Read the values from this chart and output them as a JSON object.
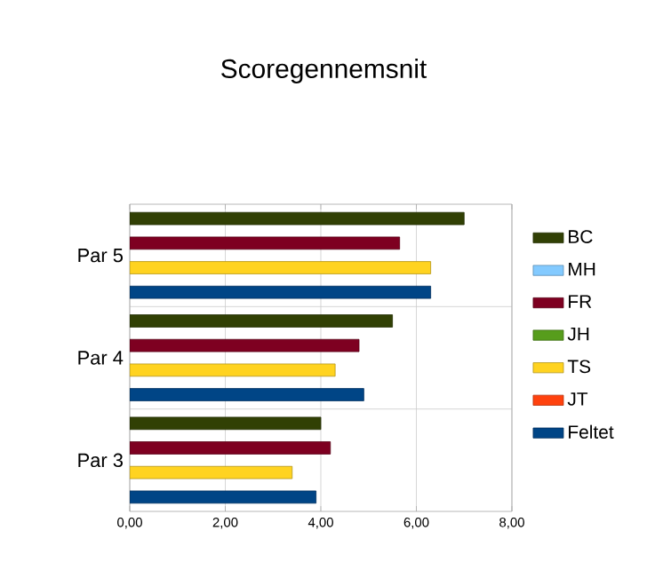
{
  "chart_data": {
    "type": "bar",
    "orientation": "horizontal",
    "title": "Scoregennemsnit",
    "categories": [
      "Par 5",
      "Par 4",
      "Par 3"
    ],
    "series": [
      {
        "name": "BC",
        "color": "#314004",
        "values": [
          7.0,
          5.5,
          4.0
        ]
      },
      {
        "name": "MH",
        "color": "#83caff",
        "values": [
          null,
          null,
          null
        ]
      },
      {
        "name": "FR",
        "color": "#7e0021",
        "values": [
          5.65,
          4.8,
          4.2
        ]
      },
      {
        "name": "JH",
        "color": "#579d1c",
        "values": [
          null,
          null,
          null
        ]
      },
      {
        "name": "TS",
        "color": "#ffd320",
        "values": [
          6.3,
          4.3,
          3.4
        ]
      },
      {
        "name": "JT",
        "color": "#ff420e",
        "values": [
          null,
          null,
          null
        ]
      },
      {
        "name": "Feltet",
        "color": "#004586",
        "values": [
          6.3,
          4.9,
          3.9
        ]
      }
    ],
    "xlim": [
      0,
      8
    ],
    "xticks": [
      {
        "value": 0,
        "label": "0,00"
      },
      {
        "value": 2,
        "label": "2,00"
      },
      {
        "value": 4,
        "label": "4,00"
      },
      {
        "value": 6,
        "label": "6,00"
      },
      {
        "value": 8,
        "label": "8,00"
      }
    ],
    "grid": true,
    "legend": "right"
  }
}
